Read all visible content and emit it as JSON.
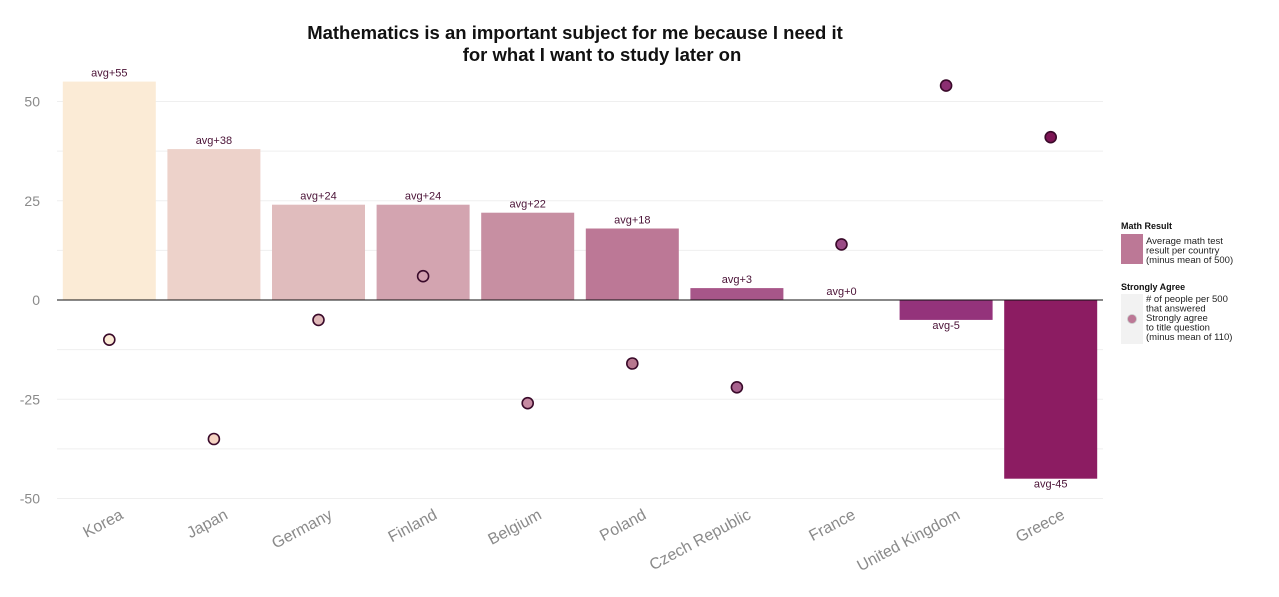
{
  "chart_data": {
    "type": "bar",
    "title": [
      "Mathematics is an important subject for me because I need it",
      "for what I want to study later on"
    ],
    "categories": [
      "Korea",
      "Japan",
      "Germany",
      "Finland",
      "Belgium",
      "Poland",
      "Czech Republic",
      "France",
      "United Kingdom",
      "Greece"
    ],
    "series": [
      {
        "kind": "bar",
        "values": [
          55,
          38,
          24,
          24,
          22,
          18,
          3,
          0,
          -5,
          -45
        ],
        "labels": [
          "avg+55",
          "avg+38",
          "avg+24",
          "avg+24",
          "avg+22",
          "avg+18",
          "avg+3",
          "avg+0",
          "avg-5",
          "avg-45"
        ],
        "colors": [
          "#fbebd6",
          "#edd2ca",
          "#e0bcbd",
          "#d3a4b0",
          "#c78fa2",
          "#bc7896",
          "#a75689",
          "#9a437f",
          "#94337b",
          "#8c1c62"
        ]
      },
      {
        "kind": "point",
        "values": [
          -10,
          -35,
          -5,
          6,
          -26,
          -16,
          -22,
          14,
          54,
          41
        ],
        "colors": [
          "#fbebd6",
          "#f5d3c2",
          "#e0b8b8",
          "#d3a0ae",
          "#c78aa2",
          "#b8778f",
          "#a8628e",
          "#9a4a85",
          "#8c2f72",
          "#7d1555"
        ]
      }
    ],
    "yticks": [
      50,
      25,
      0,
      -25,
      -50
    ],
    "ylim": [
      -50,
      57
    ],
    "grid": true,
    "legend": {
      "placement": "right",
      "sections": [
        {
          "title": "Math Result",
          "text": [
            "Average math test",
            "result per country",
            "(minus mean of 500)"
          ],
          "swatch_color": "#bc7896"
        },
        {
          "title": "Strongly Agree",
          "text": [
            "# of people per 500",
            "that answered",
            "Strongly agree",
            " to title question",
            "(minus mean of 110)"
          ],
          "point_color": "#bc7896"
        }
      ]
    }
  }
}
